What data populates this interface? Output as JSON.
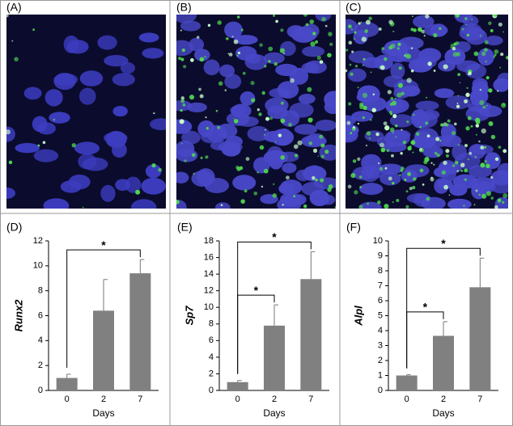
{
  "image_panels": [
    {
      "label": "(A)"
    },
    {
      "label": "(B)"
    },
    {
      "label": "(C)"
    }
  ],
  "chart_data": [
    {
      "type": "bar",
      "panel_label": "(D)",
      "ylabel": "Runx2",
      "xlabel": "Days",
      "categories": [
        "0",
        "2",
        "7"
      ],
      "values": [
        1.0,
        6.4,
        9.4
      ],
      "errors": [
        0.3,
        2.5,
        1.1
      ],
      "color": "#808080",
      "ylim": [
        0,
        12
      ],
      "yticks": [
        0,
        2,
        4,
        6,
        8,
        10,
        12
      ],
      "annotations": [
        {
          "text": "*",
          "from": "0",
          "to": "7"
        }
      ]
    },
    {
      "type": "bar",
      "panel_label": "(E)",
      "ylabel": "Sp7",
      "xlabel": "Days",
      "categories": [
        "0",
        "2",
        "7"
      ],
      "values": [
        1.0,
        7.8,
        13.4
      ],
      "errors": [
        0.2,
        2.5,
        3.3
      ],
      "color": "#808080",
      "ylim": [
        0,
        18
      ],
      "yticks": [
        0,
        2,
        4,
        6,
        8,
        10,
        12,
        14,
        16,
        18
      ],
      "annotations": [
        {
          "text": "*",
          "from": "0",
          "to": "2"
        },
        {
          "text": "*",
          "from": "0",
          "to": "7"
        }
      ]
    },
    {
      "type": "bar",
      "panel_label": "(F)",
      "ylabel": "Alpl",
      "xlabel": "Days",
      "categories": [
        "0",
        "2",
        "7"
      ],
      "values": [
        1.0,
        3.65,
        6.9
      ],
      "errors": [
        0.05,
        0.95,
        1.95
      ],
      "color": "#808080",
      "ylim": [
        0,
        10
      ],
      "yticks": [
        0,
        1,
        2,
        3,
        4,
        5,
        6,
        7,
        8,
        9,
        10
      ],
      "annotations": [
        {
          "text": "*",
          "from": "0",
          "to": "2"
        },
        {
          "text": "*",
          "from": "0",
          "to": "7"
        }
      ]
    }
  ]
}
